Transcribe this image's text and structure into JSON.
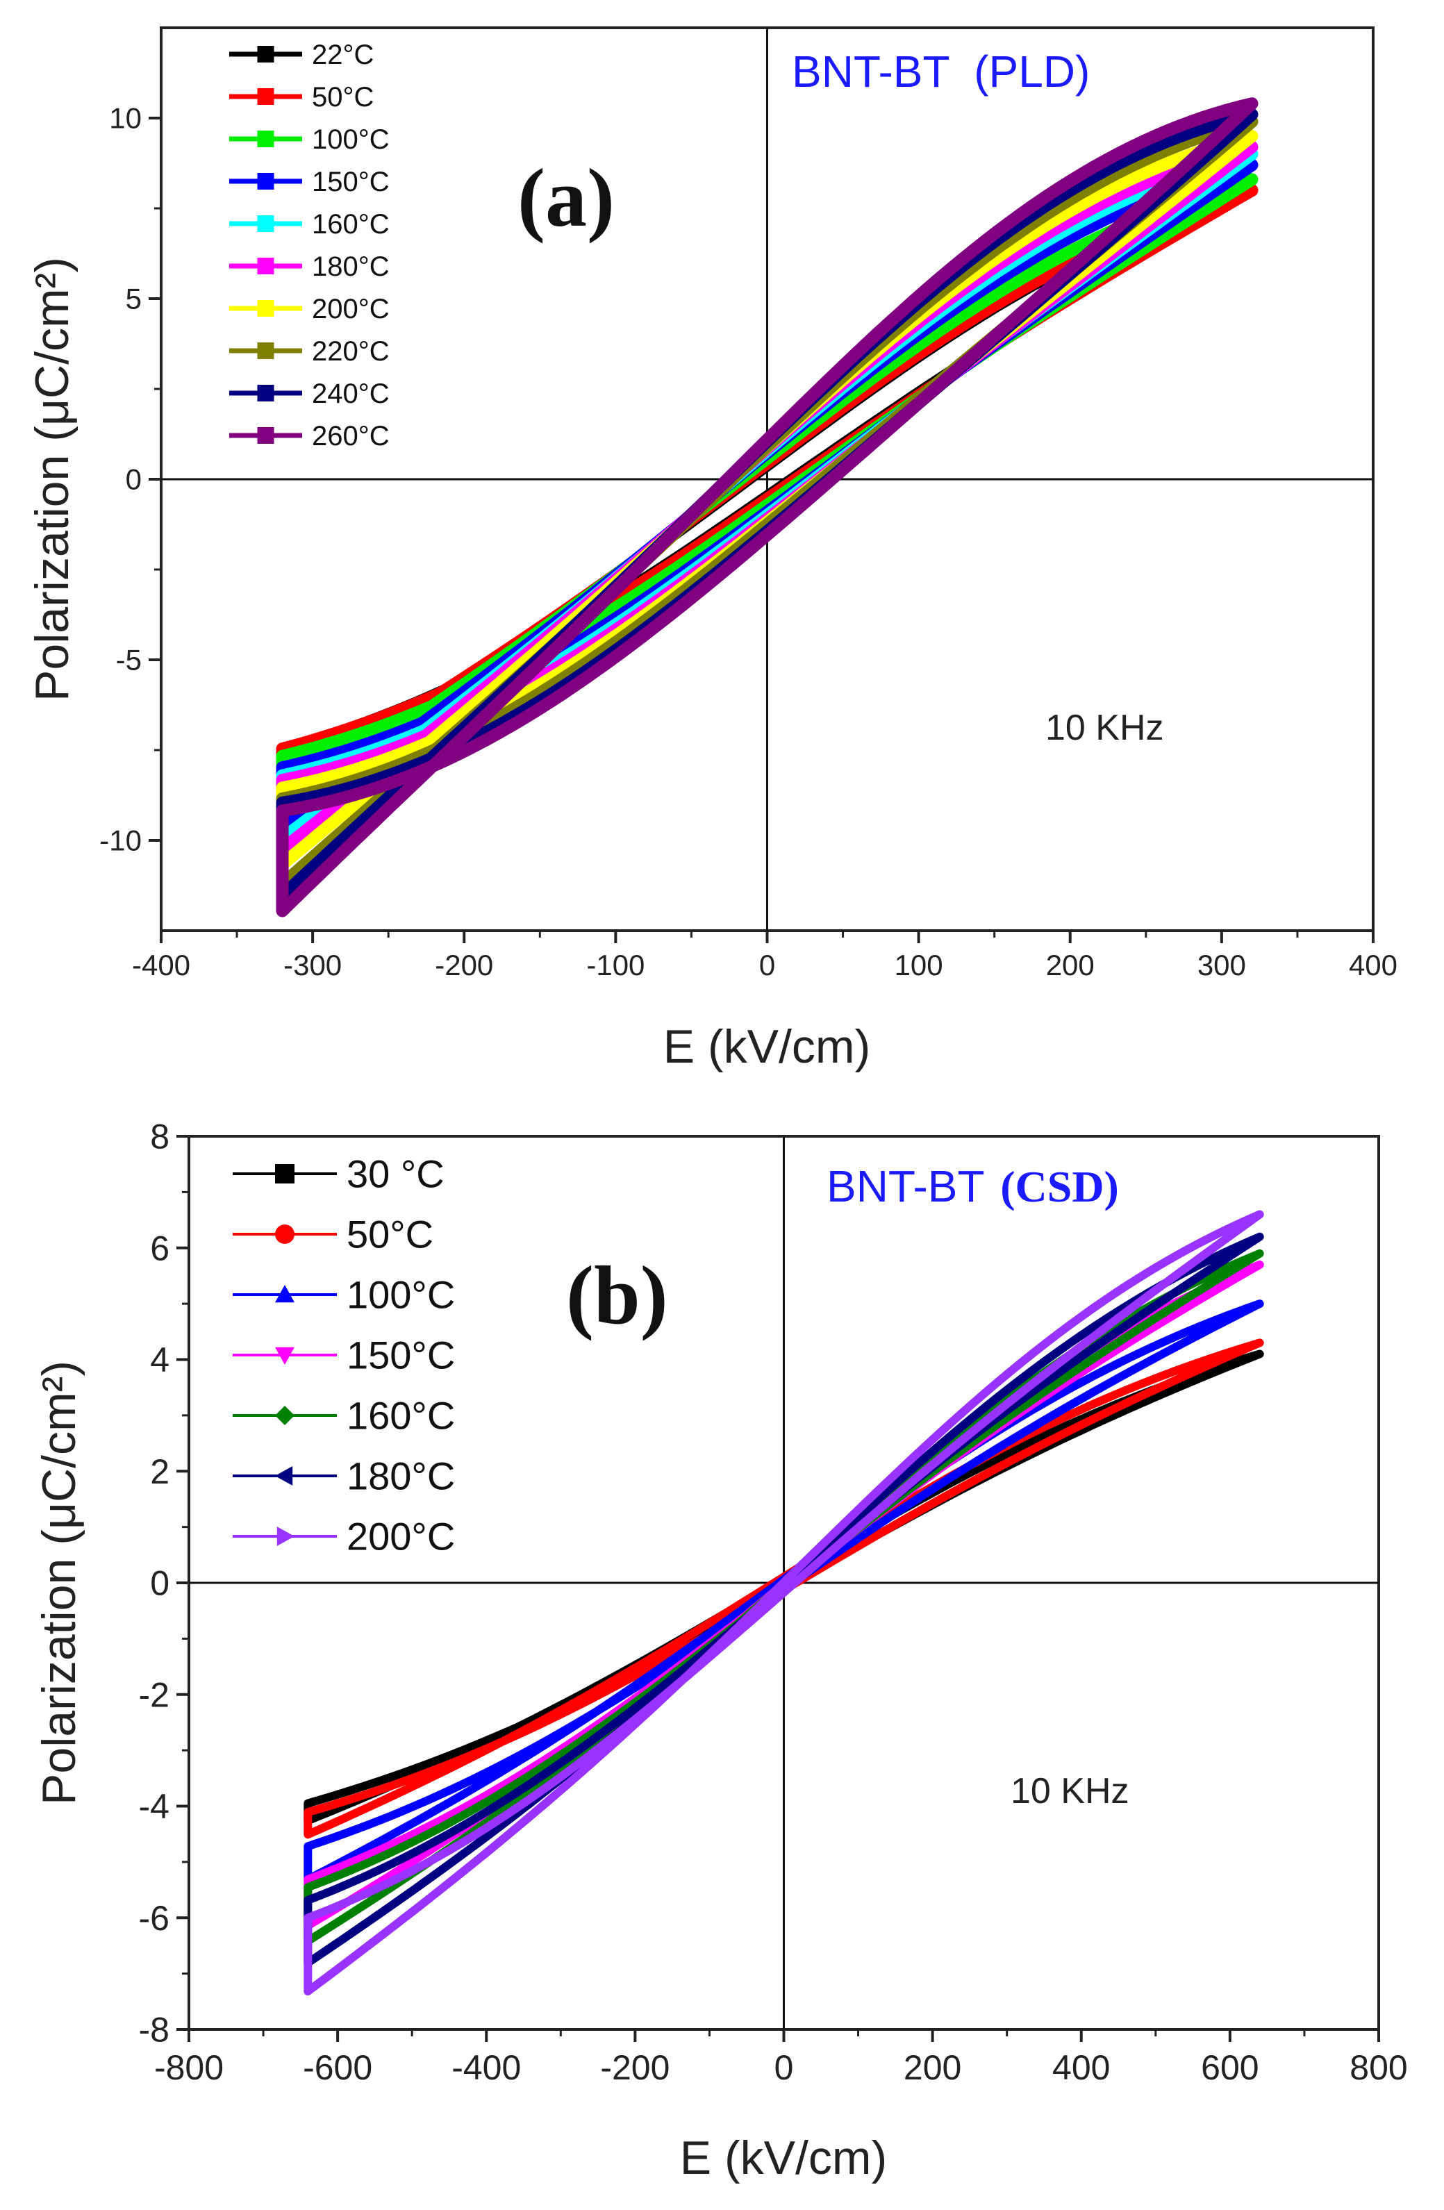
{
  "chart_data": [
    {
      "type": "line",
      "panel_label": "(a)",
      "title_main": "BNT-BT",
      "title_method": "(PLD)",
      "title_color": "#1a1aff",
      "annotation": "10 KHz",
      "xlabel": "E (kV/cm)",
      "ylabel": "Polarization (μC/cm²)",
      "xlim": [
        -400,
        400
      ],
      "ylim": [
        -12.5,
        12.5
      ],
      "xticks": [
        -400,
        -300,
        -200,
        -100,
        0,
        100,
        200,
        300,
        400
      ],
      "yticks": [
        -10,
        -5,
        0,
        5,
        10
      ],
      "legend_position": "top-left",
      "series": [
        {
          "name": "22°C",
          "color": "#000000",
          "marker": "square",
          "Emax": 320,
          "Pmax": 8.0,
          "Pr": 1.2,
          "Ec": 40
        },
        {
          "name": "50°C",
          "color": "#ff0000",
          "marker": "square",
          "Emax": 320,
          "Pmax": 8.0,
          "Pr": 1.3,
          "Ec": 42
        },
        {
          "name": "100°C",
          "color": "#00ee00",
          "marker": "square",
          "Emax": 320,
          "Pmax": 8.3,
          "Pr": 1.6,
          "Ec": 48
        },
        {
          "name": "150°C",
          "color": "#0000ff",
          "marker": "square",
          "Emax": 320,
          "Pmax": 8.7,
          "Pr": 1.9,
          "Ec": 52
        },
        {
          "name": "160°C",
          "color": "#00ffff",
          "marker": "square",
          "Emax": 320,
          "Pmax": 9.0,
          "Pr": 2.1,
          "Ec": 56
        },
        {
          "name": "180°C",
          "color": "#ff00ff",
          "marker": "square",
          "Emax": 320,
          "Pmax": 9.2,
          "Pr": 2.3,
          "Ec": 60
        },
        {
          "name": "200°C",
          "color": "#ffff00",
          "marker": "square",
          "Emax": 320,
          "Pmax": 9.5,
          "Pr": 2.5,
          "Ec": 64
        },
        {
          "name": "220°C",
          "color": "#808000",
          "marker": "square",
          "Emax": 320,
          "Pmax": 9.9,
          "Pr": 2.7,
          "Ec": 68
        },
        {
          "name": "240°C",
          "color": "#000080",
          "marker": "square",
          "Emax": 320,
          "Pmax": 10.1,
          "Pr": 3.0,
          "Ec": 72
        },
        {
          "name": "260°C",
          "color": "#800080",
          "marker": "square",
          "Emax": 320,
          "Pmax": 10.4,
          "Pr": 3.2,
          "Ec": 75
        }
      ]
    },
    {
      "type": "line",
      "panel_label": "(b)",
      "title_main": "BNT-BT",
      "title_method": "(CSD)",
      "title_color": "#1a1aff",
      "annotation": "10 KHz",
      "xlabel": "E (kV/cm)",
      "ylabel": "Polarization (μC/cm²)",
      "xlim": [
        -800,
        800
      ],
      "ylim": [
        -8,
        8
      ],
      "xticks": [
        -800,
        -600,
        -400,
        -200,
        0,
        200,
        400,
        600,
        800
      ],
      "yticks": [
        -8,
        -6,
        -4,
        -2,
        0,
        2,
        4,
        6,
        8
      ],
      "legend_position": "top-left",
      "series": [
        {
          "name": "30 °C",
          "color": "#000000",
          "marker": "square",
          "Emax": 640,
          "Pmax": 4.1,
          "Pr": 0.3,
          "Ec": 45
        },
        {
          "name": "50°C",
          "color": "#ff0000",
          "marker": "circle",
          "Emax": 640,
          "Pmax": 4.3,
          "Pr": 0.4,
          "Ec": 55
        },
        {
          "name": "100°C",
          "color": "#0000ff",
          "marker": "triangle-up",
          "Emax": 640,
          "Pmax": 5.0,
          "Pr": 0.5,
          "Ec": 70
        },
        {
          "name": "150°C",
          "color": "#ff00ff",
          "marker": "triangle-down",
          "Emax": 640,
          "Pmax": 5.7,
          "Pr": 0.6,
          "Ec": 85
        },
        {
          "name": "160°C",
          "color": "#008000",
          "marker": "diamond",
          "Emax": 640,
          "Pmax": 5.9,
          "Pr": 0.7,
          "Ec": 95
        },
        {
          "name": "180°C",
          "color": "#000080",
          "marker": "triangle-left",
          "Emax": 640,
          "Pmax": 6.2,
          "Pr": 0.8,
          "Ec": 105
        },
        {
          "name": "200°C",
          "color": "#9933ff",
          "marker": "triangle-right",
          "Emax": 640,
          "Pmax": 6.6,
          "Pr": 1.0,
          "Ec": 115
        }
      ]
    }
  ]
}
